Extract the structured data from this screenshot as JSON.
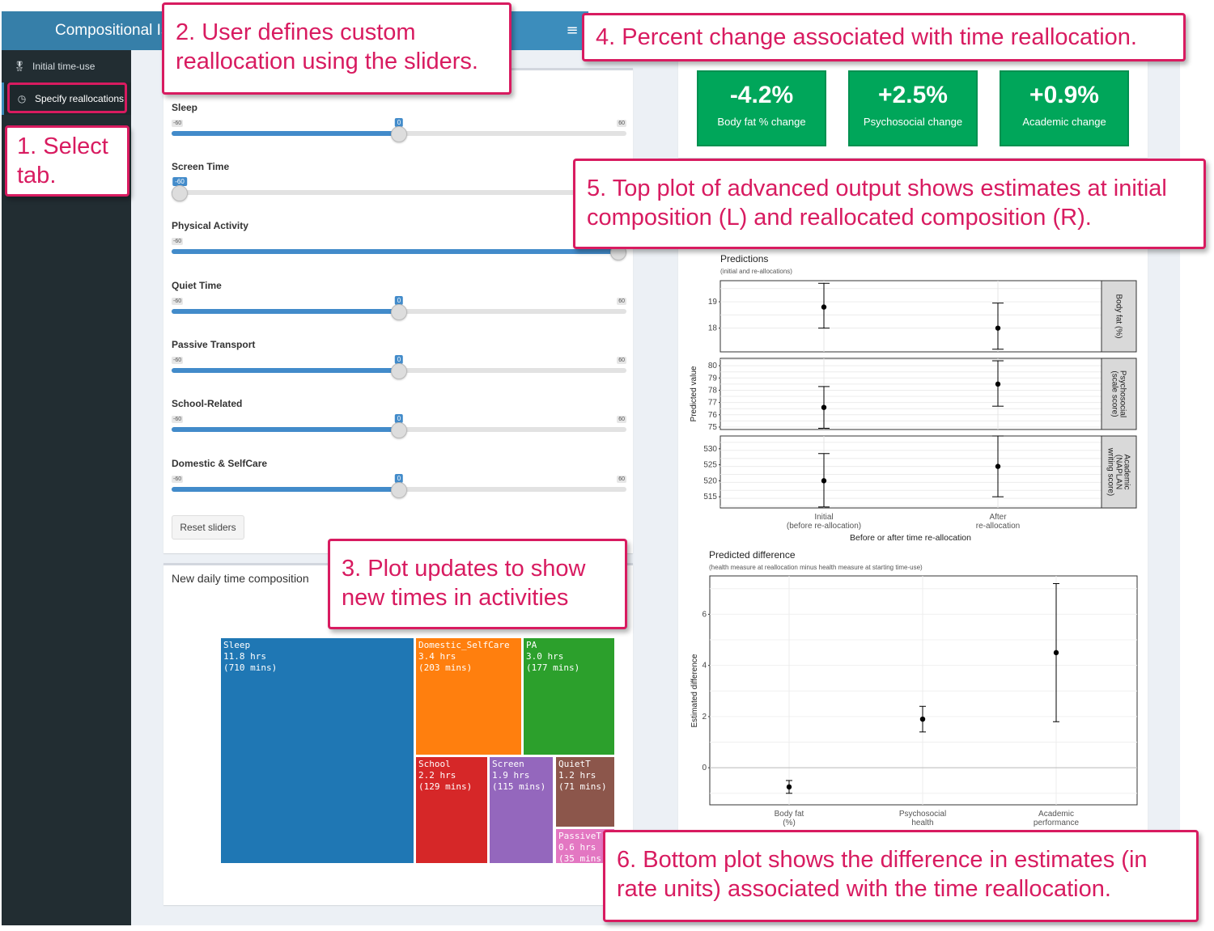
{
  "header": {
    "app_title": "Compositional Is",
    "menu_icon": "hamburger-icon"
  },
  "sidebar": {
    "items": [
      {
        "label": "Initial time-use",
        "icon": "figure-icon"
      },
      {
        "label": "Specify reallocations",
        "icon": "clock-icon"
      }
    ]
  },
  "sliders": {
    "items": [
      {
        "label": "Sleep",
        "min": "-60",
        "max": "60",
        "value": "0",
        "level": 0.5
      },
      {
        "label": "Screen Time",
        "min": "",
        "max": "",
        "value": "-60",
        "level": 0
      },
      {
        "label": "Physical Activity",
        "min": "-60",
        "max": "",
        "value": "",
        "level": 1
      },
      {
        "label": "Quiet Time",
        "min": "-60",
        "max": "60",
        "value": "0",
        "level": 0.5
      },
      {
        "label": "Passive Transport",
        "min": "-60",
        "max": "60",
        "value": "0",
        "level": 0.5
      },
      {
        "label": "School-Related",
        "min": "-60",
        "max": "60",
        "value": "0",
        "level": 0.5
      },
      {
        "label": "Domestic & SelfCare",
        "min": "-60",
        "max": "60",
        "value": "0",
        "level": 0.5
      }
    ],
    "reset_label": "Reset sliders"
  },
  "treemap": {
    "title": "New daily time composition",
    "cells": [
      {
        "name": "Sleep",
        "hrs": "11.8 hrs",
        "mins": "(710 mins)",
        "color": "#1f77b4"
      },
      {
        "name": "Domestic_SelfCare",
        "hrs": "3.4 hrs",
        "mins": "(203 mins)",
        "color": "#ff7f0e"
      },
      {
        "name": "PA",
        "hrs": "3.0 hrs",
        "mins": "(177 mins)",
        "color": "#2ca02c"
      },
      {
        "name": "School",
        "hrs": "2.2 hrs",
        "mins": "(129 mins)",
        "color": "#d62728"
      },
      {
        "name": "Screen",
        "hrs": "1.9 hrs",
        "mins": "(115 mins)",
        "color": "#9467bd"
      },
      {
        "name": "QuietT",
        "hrs": "1.2 hrs",
        "mins": "(71 mins)",
        "color": "#8c564b"
      },
      {
        "name": "PassiveTran",
        "hrs": "0.6 hrs",
        "mins": "(35 mins)",
        "color": "#e377c2"
      }
    ]
  },
  "value_boxes": [
    {
      "value": "-4.2%",
      "label": "Body fat % change"
    },
    {
      "value": "+2.5%",
      "label": "Psychosocial change"
    },
    {
      "value": "+0.9%",
      "label": "Academic change"
    }
  ],
  "colors": {
    "value_box": "#00a65a",
    "callout": "#d81b60",
    "header": "#3c8dbc",
    "sidebar": "#222d32"
  },
  "callouts": [
    {
      "text": "1. Select tab."
    },
    {
      "text": "2. User defines custom reallocation using the sliders."
    },
    {
      "text": "3. Plot updates to show new times in activities"
    },
    {
      "text": "4. Percent change associated with time reallocation."
    },
    {
      "text": "5. Top plot of advanced output shows estimates at initial composition (L) and reallocated composition (R)."
    },
    {
      "text": "6. Bottom plot shows the difference in estimates (in rate units) associated with the time reallocation."
    }
  ],
  "chart_data": [
    {
      "type": "scatter",
      "title": "Predictions",
      "subtitle": "(initial and re-allocations)",
      "xlabel": "Before or after time re-allocation",
      "ylabel": "Predicted value",
      "categories": [
        "Initial\n(before re-allocation)",
        "After\nre-allocation"
      ],
      "panels": [
        {
          "strip": "Body fat (%)",
          "yticks": [
            18,
            19
          ],
          "ylim": [
            17.1,
            19.8
          ],
          "points": [
            {
              "y": 18.8,
              "lo": 18.0,
              "hi": 19.7
            },
            {
              "y": 18.0,
              "lo": 17.2,
              "hi": 18.95
            }
          ]
        },
        {
          "strip": "Psychosocial\n(scale score)",
          "yticks": [
            75,
            76,
            77,
            78,
            79,
            80
          ],
          "ylim": [
            74.8,
            80.6
          ],
          "points": [
            {
              "y": 76.6,
              "lo": 74.9,
              "hi": 78.3
            },
            {
              "y": 78.5,
              "lo": 76.7,
              "hi": 80.4
            }
          ]
        },
        {
          "strip": "Academic\n(NAPLAN\nwriting score)",
          "yticks": [
            515,
            520,
            525,
            530
          ],
          "ylim": [
            511.5,
            534
          ],
          "points": [
            {
              "y": 520,
              "lo": 511.8,
              "hi": 528.5
            },
            {
              "y": 524.5,
              "lo": 515,
              "hi": 534
            }
          ]
        }
      ],
      "grid": true
    },
    {
      "type": "scatter",
      "title": "Predicted difference",
      "subtitle": "(health measure at reallocation minus health measure at starting time-use)",
      "xlabel": "",
      "ylabel": "Estimated difference",
      "categories": [
        "Body fat\n(%)",
        "Psychosocial\nhealth",
        "Academic\nperformance"
      ],
      "yticks": [
        0,
        2,
        4,
        6
      ],
      "ylim": [
        -1.45,
        7.5
      ],
      "points": [
        {
          "y": -0.75,
          "lo": -1.0,
          "hi": -0.5
        },
        {
          "y": 1.9,
          "lo": 1.4,
          "hi": 2.4
        },
        {
          "y": 4.5,
          "lo": 1.8,
          "hi": 7.2
        }
      ],
      "grid": true
    }
  ]
}
